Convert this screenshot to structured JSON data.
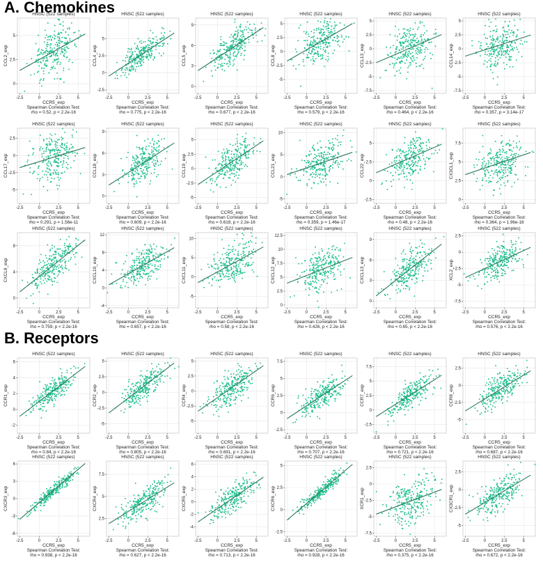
{
  "sections": [
    {
      "title": "A. Chemokines"
    },
    {
      "title": "B. Receptors"
    }
  ],
  "colors": {
    "point": "#1fbf8f",
    "line": "#2f7a5a",
    "axis": "#555555",
    "grid": "#e6e6e6"
  },
  "plot_header": "HNSC (522 samples)",
  "test_label": "Spearman Correlation Test:",
  "chart_data": [
    {
      "type": "scatter",
      "section": 0,
      "title": "HNSC (522 samples)",
      "xlabel": "CCR5_exp",
      "ylabel": "CCL2_exp",
      "rho": "0.52",
      "p": "p < 2.2e-16",
      "xlim": [
        -2.8,
        6.5
      ],
      "ylim": [
        -1.0,
        6.8
      ],
      "xticks": [
        -2.5,
        0,
        2.5,
        5
      ],
      "yticks": [
        0,
        2.5,
        5
      ],
      "intercept": 2.5,
      "slope": 0.45,
      "spread": 1.2
    },
    {
      "type": "scatter",
      "section": 0,
      "title": "HNSC (522 samples)",
      "xlabel": "CCR5_exp",
      "ylabel": "CCL4_exp",
      "rho": "0.775",
      "p": "p < 2.2e-16",
      "xlim": [
        -2.8,
        6.5
      ],
      "ylim": [
        -3.0,
        8.0
      ],
      "xticks": [
        -2.5,
        0,
        2.5,
        5
      ],
      "yticks": [
        -2.5,
        0,
        2.5,
        5
      ],
      "intercept": 1.4,
      "slope": 0.75,
      "spread": 1.0
    },
    {
      "type": "scatter",
      "section": 0,
      "title": "HNSC (522 samples)",
      "xlabel": "CCR5_exp",
      "ylabel": "CCL5_exp",
      "rho": "0.677",
      "p": "p < 2.2e-16",
      "xlim": [
        -2.8,
        6.5
      ],
      "ylim": [
        -1.0,
        10.0
      ],
      "xticks": [
        -2.5,
        0,
        2.5,
        5
      ],
      "yticks": [
        0,
        3,
        6,
        9
      ],
      "intercept": 4.2,
      "slope": 0.75,
      "spread": 1.3
    },
    {
      "type": "scatter",
      "section": 0,
      "title": "HNSC (522 samples)",
      "xlabel": "CCR5_exp",
      "ylabel": "CCL8_exp",
      "rho": "0.579",
      "p": "p < 2.2e-16",
      "xlim": [
        -2.8,
        6.5
      ],
      "ylim": [
        -7.5,
        6.0
      ],
      "xticks": [
        -2.5,
        0,
        2.5,
        5
      ],
      "yticks": [
        -5,
        -2.5,
        0,
        2.5,
        5
      ],
      "intercept": 0.3,
      "slope": 0.8,
      "spread": 1.9
    },
    {
      "type": "scatter",
      "section": 0,
      "title": "HNSC (522 samples)",
      "xlabel": "CCR5_exp",
      "ylabel": "CCL13_exp",
      "rho": "0.464",
      "p": "p < 2.2e-16",
      "xlim": [
        -2.8,
        6.5
      ],
      "ylim": [
        -8.0,
        5.5
      ],
      "xticks": [
        -2.5,
        0,
        2.5,
        5
      ],
      "yticks": [
        -7.5,
        -5,
        -2.5,
        0,
        2.5,
        5
      ],
      "intercept": -1.0,
      "slope": 0.6,
      "spread": 2.0
    },
    {
      "type": "scatter",
      "section": 0,
      "title": "HNSC (522 samples)",
      "xlabel": "CCR5_exp",
      "ylabel": "CCL14_exp",
      "rho": "0.357",
      "p": "p = 3.14e-17",
      "xlim": [
        -2.8,
        6.5
      ],
      "ylim": [
        -8.0,
        5.5
      ],
      "xticks": [
        -2.5,
        0,
        2.5,
        5
      ],
      "yticks": [
        -7.5,
        -5,
        -2.5,
        0,
        2.5,
        5
      ],
      "intercept": -0.2,
      "slope": 0.45,
      "spread": 2.0
    },
    {
      "type": "scatter",
      "section": 0,
      "title": "HNSC (522 samples)",
      "xlabel": "CCR5_exp",
      "ylabel": "CCL17_exp",
      "rho": "0.291",
      "p": "p = 1.56e-11",
      "xlim": [
        -2.8,
        6.5
      ],
      "ylim": [
        -7.0,
        4.0
      ],
      "xticks": [
        -2.5,
        0,
        2.5,
        5
      ],
      "yticks": [
        -5,
        -2.5,
        0,
        2.5
      ],
      "intercept": -0.9,
      "slope": 0.35,
      "spread": 1.8
    },
    {
      "type": "scatter",
      "section": 0,
      "title": "HNSC (522 samples)",
      "xlabel": "CCR5_exp",
      "ylabel": "CCL18_exp",
      "rho": "0.609",
      "p": "p < 2.2e-16",
      "xlim": [
        -2.8,
        6.5
      ],
      "ylim": [
        -1.0,
        9.5
      ],
      "xticks": [
        -2.5,
        0,
        2.5,
        5
      ],
      "yticks": [
        0,
        3,
        6,
        9
      ],
      "intercept": 3.3,
      "slope": 0.7,
      "spread": 1.4
    },
    {
      "type": "scatter",
      "section": 0,
      "title": "HNSC (522 samples)",
      "xlabel": "CCR5_exp",
      "ylabel": "CCL19_exp",
      "rho": "0.618",
      "p": "p < 2.2e-16",
      "xlim": [
        -2.8,
        6.5
      ],
      "ylim": [
        -6.0,
        7.0
      ],
      "xticks": [
        -2.5,
        0,
        2.5,
        5
      ],
      "yticks": [
        -5,
        -2.5,
        0,
        2.5,
        5
      ],
      "intercept": -0.5,
      "slope": 0.9,
      "spread": 1.6
    },
    {
      "type": "scatter",
      "section": 0,
      "title": "HNSC (522 samples)",
      "xlabel": "CCR5_exp",
      "ylabel": "CCL21_exp",
      "rho": "0.359",
      "p": "p = 1.46e-17",
      "xlim": [
        -2.8,
        6.5
      ],
      "ylim": [
        -6.0,
        11.0
      ],
      "xticks": [
        -2.5,
        0,
        2.5,
        5
      ],
      "yticks": [
        -5,
        0,
        5,
        10
      ],
      "intercept": 2.0,
      "slope": 0.6,
      "spread": 2.4
    },
    {
      "type": "scatter",
      "section": 0,
      "title": "HNSC (522 samples)",
      "xlabel": "CCR5_exp",
      "ylabel": "CCL22_exp",
      "rho": "0.48",
      "p": "p < 2.2e-16",
      "xlim": [
        -2.8,
        6.5
      ],
      "ylim": [
        -3.0,
        7.0
      ],
      "xticks": [
        -2.5,
        0,
        2.5,
        5
      ],
      "yticks": [
        -2.5,
        0,
        2.5,
        5
      ],
      "intercept": 2.2,
      "slope": 0.45,
      "spread": 1.3
    },
    {
      "type": "scatter",
      "section": 0,
      "title": "HNSC (522 samples)",
      "xlabel": "CCR5_exp",
      "ylabel": "CX3CL1_exp",
      "rho": "0.364",
      "p": "p = 1.96e-18",
      "xlim": [
        -2.8,
        6.5
      ],
      "ylim": [
        -0.5,
        9.5
      ],
      "xticks": [
        -2.5,
        0,
        2.5,
        5
      ],
      "yticks": [
        0,
        2.5,
        5,
        7.5
      ],
      "intercept": 4.2,
      "slope": 0.35,
      "spread": 1.4
    },
    {
      "type": "scatter",
      "section": 0,
      "title": "HNSC (522 samples)",
      "xlabel": "CCR5_exp",
      "ylabel": "CXCL9_exp",
      "rho": "0.759",
      "p": "p < 2.2e-16",
      "xlim": [
        -2.8,
        6.5
      ],
      "ylim": [
        -1.5,
        10.0
      ],
      "xticks": [
        -2.5,
        0,
        2.5,
        5
      ],
      "yticks": [
        0,
        4,
        8
      ],
      "intercept": 3.3,
      "slope": 0.95,
      "spread": 1.3
    },
    {
      "type": "scatter",
      "section": 0,
      "title": "HNSC (522 samples)",
      "xlabel": "CCR5_exp",
      "ylabel": "CXCL10_exp",
      "rho": "0.657",
      "p": "p < 2.2e-16",
      "xlim": [
        -2.8,
        6.5
      ],
      "ylim": [
        -4.5,
        12.5
      ],
      "xticks": [
        -2.5,
        0,
        2.5,
        5
      ],
      "yticks": [
        -4,
        0,
        4,
        8,
        12
      ],
      "intercept": 3.2,
      "slope": 1.0,
      "spread": 2.0
    },
    {
      "type": "scatter",
      "section": 0,
      "title": "HNSC (522 samples)",
      "xlabel": "CCR5_exp",
      "ylabel": "CXCL11_exp",
      "rho": "0.58",
      "p": "p < 2.2e-16",
      "xlim": [
        -2.8,
        6.5
      ],
      "ylim": [
        -8.0,
        11.5
      ],
      "xticks": [
        -2.5,
        0,
        2.5,
        5
      ],
      "yticks": [
        -5,
        0,
        5,
        10
      ],
      "intercept": 1.3,
      "slope": 1.1,
      "spread": 2.4
    },
    {
      "type": "scatter",
      "section": 0,
      "title": "HNSC (522 samples)",
      "xlabel": "CCR5_exp",
      "ylabel": "CXCL12_exp",
      "rho": "0.426",
      "p": "p < 2.2e-16",
      "xlim": [
        -2.8,
        6.5
      ],
      "ylim": [
        -0.5,
        13.0
      ],
      "xticks": [
        -2.5,
        0,
        2.5,
        5
      ],
      "yticks": [
        0,
        2.5,
        5,
        7.5,
        10,
        12.5
      ],
      "intercept": 5.3,
      "slope": 0.55,
      "spread": 1.9
    },
    {
      "type": "scatter",
      "section": 0,
      "title": "HNSC (522 samples)",
      "xlabel": "CCR5_exp",
      "ylabel": "CXCL13_exp",
      "rho": "0.65",
      "p": "p < 2.2e-16",
      "xlim": [
        -2.8,
        6.5
      ],
      "ylim": [
        -1.0,
        10.0
      ],
      "xticks": [
        -2.5,
        0,
        2.5,
        5
      ],
      "yticks": [
        0,
        3,
        6,
        9
      ],
      "intercept": 3.0,
      "slope": 0.9,
      "spread": 1.4
    },
    {
      "type": "scatter",
      "section": 0,
      "title": "HNSC (522 samples)",
      "xlabel": "CCR5_exp",
      "ylabel": "XCL2_exp",
      "rho": "0.576",
      "p": "p < 2.2e-16",
      "xlim": [
        -2.8,
        6.5
      ],
      "ylim": [
        -8.5,
        3.0
      ],
      "xticks": [
        -2.5,
        0,
        2.5,
        5
      ],
      "yticks": [
        -7.5,
        -5,
        -2.5,
        0,
        2.5
      ],
      "intercept": -2.5,
      "slope": 0.55,
      "spread": 1.4
    },
    {
      "type": "scatter",
      "section": 1,
      "title": "HNSC (522 samples)",
      "xlabel": "CCR5_exp",
      "ylabel": "CCR1_exp",
      "rho": "0.84",
      "p": "p < 2.2e-16",
      "xlim": [
        -2.8,
        6.5
      ],
      "ylim": [
        -3.0,
        6.5
      ],
      "xticks": [
        -2.5,
        0,
        2.5,
        5
      ],
      "yticks": [
        -2,
        0,
        2,
        4,
        6
      ],
      "intercept": 1.0,
      "slope": 0.75,
      "spread": 0.75
    },
    {
      "type": "scatter",
      "section": 1,
      "title": "HNSC (522 samples)",
      "xlabel": "CCR5_exp",
      "ylabel": "CCR2_exp",
      "rho": "0.805",
      "p": "p < 2.2e-16",
      "xlim": [
        -2.8,
        6.5
      ],
      "ylim": [
        -6.5,
        5.5
      ],
      "xticks": [
        -2.5,
        0,
        2.5,
        5
      ],
      "yticks": [
        -5,
        -2.5,
        0,
        2.5,
        5
      ],
      "intercept": -0.9,
      "slope": 0.95,
      "spread": 1.0
    },
    {
      "type": "scatter",
      "section": 1,
      "title": "HNSC (522 samples)",
      "xlabel": "CCR5_exp",
      "ylabel": "CCR4_exp",
      "rho": "0.691",
      "p": "p < 2.2e-16",
      "xlim": [
        -2.8,
        6.5
      ],
      "ylim": [
        -7.0,
        5.5
      ],
      "xticks": [
        -2.5,
        0,
        2.5,
        5
      ],
      "yticks": [
        -5,
        -2.5,
        0,
        2.5,
        5
      ],
      "intercept": -1.1,
      "slope": 0.9,
      "spread": 1.3
    },
    {
      "type": "scatter",
      "section": 1,
      "title": "HNSC (522 samples)",
      "xlabel": "CCR5_exp",
      "ylabel": "CCR6_exp",
      "rho": "0.707",
      "p": "p < 2.2e-16",
      "xlim": [
        -2.8,
        6.5
      ],
      "ylim": [
        -3.0,
        8.0
      ],
      "xticks": [
        -2.5,
        0,
        2.5,
        5
      ],
      "yticks": [
        -2.5,
        0,
        2.5,
        5,
        7.5
      ],
      "intercept": 1.0,
      "slope": 0.75,
      "spread": 1.0
    },
    {
      "type": "scatter",
      "section": 1,
      "title": "HNSC (522 samples)",
      "xlabel": "CCR5_exp",
      "ylabel": "CCR7_exp",
      "rho": "0.721",
      "p": "p < 2.2e-16",
      "xlim": [
        -2.8,
        6.5
      ],
      "ylim": [
        -4.0,
        9.0
      ],
      "xticks": [
        -2.5,
        0,
        2.5,
        5
      ],
      "yticks": [
        -2.5,
        0,
        2.5,
        5,
        7.5
      ],
      "intercept": 1.0,
      "slope": 0.85,
      "spread": 1.2
    },
    {
      "type": "scatter",
      "section": 1,
      "title": "HNSC (522 samples)",
      "xlabel": "CCR5_exp",
      "ylabel": "CCR8_exp",
      "rho": "0.687",
      "p": "p < 2.2e-16",
      "xlim": [
        -2.8,
        6.5
      ],
      "ylim": [
        -7.0,
        4.0
      ],
      "xticks": [
        -2.5,
        0,
        2.5,
        5
      ],
      "yticks": [
        -5,
        -2.5,
        0,
        2.5
      ],
      "intercept": -2.0,
      "slope": 0.7,
      "spread": 1.1
    },
    {
      "type": "scatter",
      "section": 1,
      "title": "HNSC (522 samples)",
      "xlabel": "CCR5_exp",
      "ylabel": "CXCR3_exp",
      "rho": "0.938",
      "p": "p < 2.2e-16",
      "xlim": [
        -2.8,
        6.5
      ],
      "ylim": [
        -6.5,
        6.5
      ],
      "xticks": [
        -2.5,
        0,
        2.5,
        5
      ],
      "yticks": [
        -6,
        -3,
        0,
        3,
        6
      ],
      "intercept": -0.7,
      "slope": 1.15,
      "spread": 0.55
    },
    {
      "type": "scatter",
      "section": 1,
      "title": "HNSC (522 samples)",
      "xlabel": "CCR5_exp",
      "ylabel": "CXCR4_exp",
      "rho": "0.627",
      "p": "p < 2.2e-16",
      "xlim": [
        -2.8,
        6.5
      ],
      "ylim": [
        0.5,
        9.0
      ],
      "xticks": [
        -2.5,
        0,
        2.5,
        5
      ],
      "yticks": [
        2.5,
        5,
        7.5
      ],
      "intercept": 3.3,
      "slope": 0.55,
      "spread": 0.9
    },
    {
      "type": "scatter",
      "section": 1,
      "title": "HNSC (522 samples)",
      "xlabel": "CCR5_exp",
      "ylabel": "CXCR5_exp",
      "rho": "0.713",
      "p": "p < 2.2e-16",
      "xlim": [
        -2.8,
        6.5
      ],
      "ylim": [
        -5.5,
        6.5
      ],
      "xticks": [
        -2.5,
        0,
        2.5,
        5
      ],
      "yticks": [
        -4,
        -2,
        0,
        2,
        4,
        6
      ],
      "intercept": -1.1,
      "slope": 0.85,
      "spread": 1.0
    },
    {
      "type": "scatter",
      "section": 1,
      "title": "HNSC (522 samples)",
      "xlabel": "CCR5_exp",
      "ylabel": "CXCR6_exp",
      "rho": "0.928",
      "p": "p < 2.2e-16",
      "xlim": [
        -2.8,
        6.5
      ],
      "ylim": [
        -3.0,
        5.5
      ],
      "xticks": [
        -2.5,
        0,
        2.5,
        5
      ],
      "yticks": [
        -2.5,
        0,
        2.5,
        5
      ],
      "intercept": 0.7,
      "slope": 0.75,
      "spread": 0.4
    },
    {
      "type": "scatter",
      "section": 1,
      "title": "HNSC (522 samples)",
      "xlabel": "CCR5_exp",
      "ylabel": "XCR1_exp",
      "rho": "0.375",
      "p": "p < 2.2e-16",
      "xlim": [
        -2.8,
        6.5
      ],
      "ylim": [
        -8.0,
        3.5
      ],
      "xticks": [
        -2.5,
        0,
        2.5,
        5
      ],
      "yticks": [
        -7.5,
        -5,
        -2.5,
        0,
        2.5
      ],
      "intercept": -3.5,
      "slope": 0.45,
      "spread": 1.8
    },
    {
      "type": "scatter",
      "section": 1,
      "title": "HNSC (522 samples)",
      "xlabel": "CCR5_exp",
      "ylabel": "CX3CR1_exp",
      "rho": "0.672",
      "p": "p < 2.2e-16",
      "xlim": [
        -2.8,
        6.5
      ],
      "ylim": [
        -6.5,
        4.0
      ],
      "xticks": [
        -2.5,
        0,
        2.5,
        5
      ],
      "yticks": [
        -5,
        -2.5,
        0,
        2.5
      ],
      "intercept": -1.8,
      "slope": 0.65,
      "spread": 1.1
    }
  ]
}
